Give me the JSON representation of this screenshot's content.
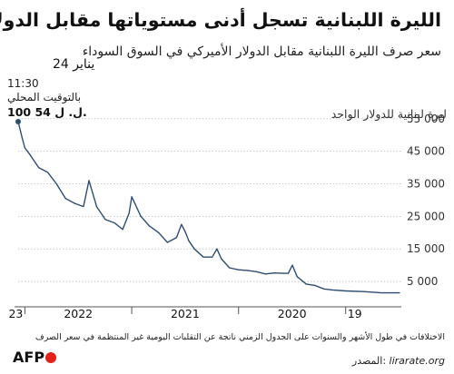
{
  "header": {
    "title": "الليرة اللبنانية تسجل أدنى مستوياتها مقابل الدولار",
    "subtitle": "سعر صرف الليرة اللبنانية مقابل الدولار الأميركي في السوق السوداء"
  },
  "annotation": {
    "date": "24 يناير",
    "time": "11:30",
    "local": "بالتوقيت المحلي",
    "value": "100 54 ل. ل."
  },
  "footer": {
    "note": "الاختلافات في طول الأشهر والسنوات على الجدول الزمني ناتجة عن التقلبات اليومية غير المنتظمة في سعر الصرف",
    "source_label": "المصدر:",
    "source_site": "lirarate.org",
    "logo_text": "AFP"
  },
  "chart_data": {
    "type": "line",
    "ylabel": "ليرة لبنانية للدولار الواحد",
    "y_ticks": [
      5000,
      15000,
      25000,
      35000,
      45000,
      55000
    ],
    "y_tick_labels": [
      "5 000",
      "15 000",
      "25 000",
      "35 000",
      "45 000",
      "55 000"
    ],
    "x_tick_labels": [
      "23",
      "2022",
      "2021",
      "2020",
      "19"
    ],
    "ylim": [
      0,
      58000
    ],
    "x_direction": "right-to-left",
    "series": [
      {
        "color": "#2e4d73",
        "x": [
          "2019-07-01",
          "2019-09-01",
          "2019-11-01",
          "2020-01-01",
          "2020-02-15",
          "2020-03-15",
          "2020-04-15",
          "2020-05-15",
          "2020-06-15",
          "2020-07-01",
          "2020-07-15",
          "2020-08-01",
          "2020-09-01",
          "2020-10-01",
          "2020-11-01",
          "2020-12-01",
          "2021-01-01",
          "2021-02-01",
          "2021-03-01",
          "2021-03-16",
          "2021-04-01",
          "2021-05-01",
          "2021-06-01",
          "2021-06-20",
          "2021-07-01",
          "2021-07-15",
          "2021-08-01",
          "2021-09-01",
          "2021-10-01",
          "2021-11-01",
          "2021-12-01",
          "2022-01-01",
          "2022-01-10",
          "2022-02-01",
          "2022-03-01",
          "2022-04-01",
          "2022-05-01",
          "2022-05-27",
          "2022-06-15",
          "2022-07-15",
          "2022-08-15",
          "2022-09-15",
          "2022-10-15",
          "2022-11-15",
          "2022-12-15",
          "2023-01-01",
          "2023-01-10",
          "2023-01-24"
        ],
        "y": [
          1507,
          1510,
          1900,
          2100,
          2400,
          2700,
          3800,
          4200,
          6500,
          10000,
          7500,
          7500,
          7600,
          7300,
          8000,
          8400,
          8600,
          9200,
          12000,
          15000,
          12500,
          12500,
          15000,
          17500,
          20000,
          22500,
          18500,
          17000,
          20000,
          22000,
          25000,
          31000,
          26000,
          21000,
          23000,
          24000,
          28000,
          36000,
          28000,
          29000,
          30500,
          35000,
          38500,
          40000,
          44000,
          46000,
          49000,
          54100
        ]
      }
    ]
  }
}
